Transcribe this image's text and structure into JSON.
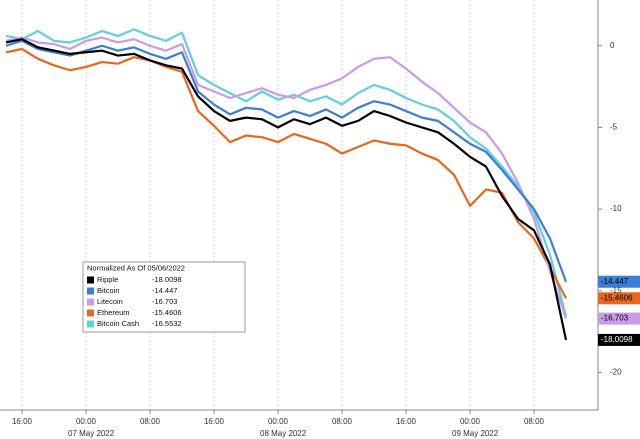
{
  "chart_data": {
    "type": "line",
    "legend_title": "Normalized As Of 05/06/2022",
    "legend_position": "lower-left",
    "grid": "x",
    "x": [
      -2,
      0,
      2,
      4,
      6,
      8,
      10,
      12,
      14,
      16,
      18,
      20,
      22,
      24,
      26,
      28,
      30,
      32,
      34,
      36,
      38,
      40,
      42,
      44,
      46,
      48,
      50,
      52,
      54,
      56,
      58,
      60,
      62,
      64,
      66,
      68
    ],
    "xlim": [
      -2.75,
      72
    ],
    "xticks": [
      {
        "value": 0,
        "label": "16:00"
      },
      {
        "value": 8,
        "label": "00:00"
      },
      {
        "value": 16,
        "label": "08:00"
      },
      {
        "value": 24,
        "label": "16:00"
      },
      {
        "value": 32,
        "label": "00:00"
      },
      {
        "value": 40,
        "label": "08:00"
      },
      {
        "value": 48,
        "label": "16:00"
      },
      {
        "value": 56,
        "label": "00:00"
      },
      {
        "value": 64,
        "label": "08:00"
      }
    ],
    "date_ticks": [
      {
        "value": 8,
        "label": "07 May 2022"
      },
      {
        "value": 32,
        "label": "08 May 2022"
      },
      {
        "value": 56,
        "label": "09 May 2022"
      }
    ],
    "ylim": [
      -22.3,
      2.8
    ],
    "yticks": [
      0,
      -5,
      -10,
      -15,
      -20
    ],
    "series": [
      {
        "name": "Ripple",
        "color": "#000000",
        "legend_value": "-18.0098",
        "show_tag": true,
        "values": [
          0.2,
          0.4,
          -0.1,
          -0.3,
          -0.5,
          -0.4,
          -0.3,
          -0.6,
          -0.5,
          -0.9,
          -1.2,
          -1.4,
          -3.1,
          -4.0,
          -4.6,
          -4.4,
          -4.5,
          -5.0,
          -4.5,
          -4.8,
          -4.4,
          -4.9,
          -4.6,
          -4.0,
          -4.3,
          -4.7,
          -5.0,
          -5.3,
          -6.0,
          -6.8,
          -7.4,
          -9.2,
          -10.6,
          -11.3,
          -13.4,
          -18.0098
        ]
      },
      {
        "name": "Bitcoin",
        "color": "#3a7fd5",
        "legend_value": "-14.447",
        "show_tag": true,
        "values": [
          0.0,
          0.3,
          -0.2,
          -0.4,
          -0.6,
          -0.3,
          0.0,
          -0.3,
          -0.1,
          -0.5,
          -0.8,
          -0.4,
          -2.8,
          -3.6,
          -4.2,
          -3.8,
          -3.9,
          -4.4,
          -4.0,
          -4.3,
          -3.9,
          -4.4,
          -3.8,
          -3.4,
          -3.6,
          -4.0,
          -4.4,
          -4.6,
          -5.3,
          -6.0,
          -6.5,
          -7.6,
          -8.8,
          -10.0,
          -11.8,
          -14.447
        ]
      },
      {
        "name": "Litecoin",
        "color": "#c89be8",
        "legend_value": "-16.703",
        "show_tag": true,
        "values": [
          0.3,
          0.5,
          0.2,
          0.1,
          -0.2,
          0.3,
          0.5,
          0.2,
          0.4,
          0.0,
          -0.3,
          0.1,
          -2.4,
          -2.8,
          -3.2,
          -2.9,
          -2.6,
          -3.0,
          -3.2,
          -2.7,
          -2.4,
          -2.0,
          -1.3,
          -0.8,
          -0.7,
          -1.4,
          -2.2,
          -2.9,
          -3.8,
          -4.7,
          -5.3,
          -6.6,
          -8.4,
          -10.6,
          -13.8,
          -16.703
        ]
      },
      {
        "name": "Ethereum",
        "color": "#e8671c",
        "legend_value": "-15.4606",
        "show_tag": true,
        "values": [
          -0.4,
          -0.2,
          -0.8,
          -1.2,
          -1.5,
          -1.3,
          -1.0,
          -1.1,
          -0.7,
          -0.9,
          -1.3,
          -1.6,
          -4.0,
          -4.9,
          -5.9,
          -5.5,
          -5.6,
          -5.9,
          -5.4,
          -5.7,
          -6.0,
          -6.6,
          -6.2,
          -5.8,
          -6.0,
          -6.1,
          -6.6,
          -7.0,
          -7.9,
          -9.8,
          -8.8,
          -9.0,
          -10.8,
          -11.8,
          -13.6,
          -15.4606
        ]
      },
      {
        "name": "Bitcoin Cash",
        "color": "#5fd0dc",
        "legend_value": "-16.5532",
        "show_tag": false,
        "values": [
          0.6,
          0.4,
          0.9,
          0.3,
          0.2,
          0.5,
          0.9,
          0.6,
          1.0,
          0.6,
          0.3,
          0.8,
          -1.8,
          -2.4,
          -2.9,
          -3.4,
          -2.8,
          -3.3,
          -3.0,
          -3.4,
          -3.1,
          -3.6,
          -2.9,
          -2.4,
          -2.7,
          -3.2,
          -3.6,
          -3.9,
          -4.6,
          -5.6,
          -6.3,
          -7.4,
          -8.6,
          -10.2,
          -12.8,
          -16.5532
        ]
      }
    ]
  }
}
